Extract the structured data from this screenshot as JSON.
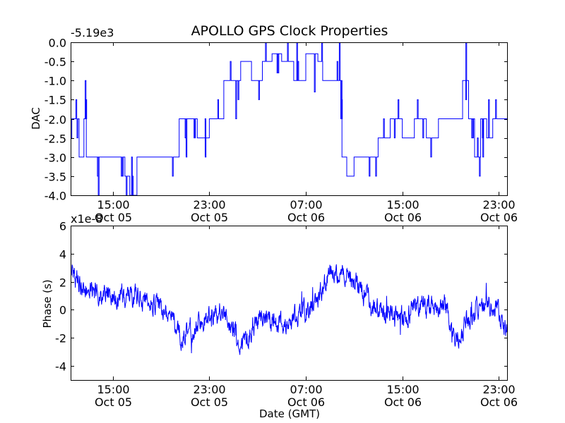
{
  "chart_data": [
    {
      "type": "line",
      "title": "APOLLO GPS Clock Properties",
      "xlabel": "",
      "ylabel": "DAC",
      "y_offset_label": "-5.19e3",
      "ylim": [
        -4.0,
        0.0
      ],
      "yticks": [
        "0.0",
        "-0.5",
        "-1.0",
        "-1.5",
        "-2.0",
        "-2.5",
        "-3.0",
        "-3.5",
        "-4.0"
      ],
      "yticks_values": [
        0,
        -0.5,
        -1.0,
        -1.5,
        -2.0,
        -2.5,
        -3.0,
        -3.5,
        -4.0
      ],
      "xlim_hours": [
        11.5,
        47.75
      ],
      "xticks": [
        {
          "hour": 15,
          "time": "15:00",
          "date": "Oct 05"
        },
        {
          "hour": 23,
          "time": "23:00",
          "date": "Oct 05"
        },
        {
          "hour": 31,
          "time": "07:00",
          "date": "Oct 06"
        },
        {
          "hour": 39,
          "time": "15:00",
          "date": "Oct 06"
        },
        {
          "hour": 47,
          "time": "23:00",
          "date": "Oct 06"
        }
      ],
      "series": [
        {
          "name": "DAC",
          "step_levels": [
            [
              11.5,
              -2.5
            ],
            [
              11.6,
              -2.0
            ],
            [
              12.2,
              -3.0
            ],
            [
              12.6,
              -2.0
            ],
            [
              12.8,
              -3.0
            ],
            [
              15.0,
              -3.0
            ],
            [
              16.0,
              -3.5
            ],
            [
              16.4,
              -4.0
            ],
            [
              17.0,
              -3.0
            ],
            [
              19.0,
              -3.0
            ],
            [
              20.5,
              -2.0
            ],
            [
              21.5,
              -2.0
            ],
            [
              22.0,
              -2.5
            ],
            [
              23.0,
              -2.0
            ],
            [
              24.2,
              -1.0
            ],
            [
              25.0,
              -1.0
            ],
            [
              25.6,
              -0.5
            ],
            [
              26.5,
              -1.0
            ],
            [
              27.4,
              -0.5
            ],
            [
              28.2,
              -0.3
            ],
            [
              29.0,
              -0.5
            ],
            [
              30.0,
              -1.0
            ],
            [
              31.0,
              -0.3
            ],
            [
              32.0,
              -0.5
            ],
            [
              32.4,
              -1.0
            ],
            [
              33.5,
              -1.0
            ],
            [
              33.9,
              -2.0
            ],
            [
              34.0,
              -3.0
            ],
            [
              34.4,
              -3.5
            ],
            [
              35.0,
              -3.0
            ],
            [
              35.5,
              -3.0
            ],
            [
              36.0,
              -3.0
            ],
            [
              37.0,
              -2.5
            ],
            [
              38.0,
              -2.0
            ],
            [
              39.0,
              -2.5
            ],
            [
              40.0,
              -2.0
            ],
            [
              41.0,
              -2.5
            ],
            [
              42.0,
              -2.0
            ],
            [
              43.0,
              -2.0
            ],
            [
              44.0,
              -1.0
            ],
            [
              44.5,
              -2.0
            ],
            [
              45.0,
              -3.0
            ],
            [
              45.5,
              -2.0
            ],
            [
              46.0,
              -2.5
            ],
            [
              46.5,
              -2.0
            ],
            [
              47.5,
              -2.0
            ],
            [
              47.75,
              -1.0
            ]
          ]
        }
      ]
    },
    {
      "type": "line",
      "title": "",
      "xlabel": "Date (GMT)",
      "ylabel": "Phase (s)",
      "y_offset_label": "x1e-8",
      "ylim": [
        -5,
        6
      ],
      "yticks": [
        "6",
        "4",
        "2",
        "0",
        "-2",
        "-4"
      ],
      "yticks_values": [
        6,
        4,
        2,
        0,
        -2,
        -4
      ],
      "xlim_hours": [
        11.5,
        47.75
      ],
      "xticks": [
        {
          "hour": 15,
          "time": "15:00",
          "date": "Oct 05"
        },
        {
          "hour": 23,
          "time": "23:00",
          "date": "Oct 05"
        },
        {
          "hour": 31,
          "time": "07:00",
          "date": "Oct 06"
        },
        {
          "hour": 39,
          "time": "15:00",
          "date": "Oct 06"
        },
        {
          "hour": 47,
          "time": "23:00",
          "date": "Oct 06"
        }
      ],
      "series": [
        {
          "name": "Phase",
          "trend": [
            [
              11.5,
              2.8
            ],
            [
              12.0,
              2.0
            ],
            [
              13.0,
              1.3
            ],
            [
              14.0,
              1.0
            ],
            [
              15.0,
              1.0
            ],
            [
              16.0,
              0.9
            ],
            [
              17.0,
              1.0
            ],
            [
              18.0,
              0.6
            ],
            [
              19.0,
              0.1
            ],
            [
              20.0,
              -0.6
            ],
            [
              20.5,
              -1.6
            ],
            [
              21.0,
              -2.0
            ],
            [
              21.5,
              -1.4
            ],
            [
              22.0,
              -1.0
            ],
            [
              23.0,
              -0.5
            ],
            [
              24.0,
              -0.3
            ],
            [
              24.5,
              -0.6
            ],
            [
              25.0,
              -1.5
            ],
            [
              25.5,
              -2.6
            ],
            [
              26.0,
              -2.4
            ],
            [
              26.5,
              -1.5
            ],
            [
              27.0,
              -0.6
            ],
            [
              27.5,
              -0.3
            ],
            [
              28.0,
              -0.7
            ],
            [
              28.5,
              -1.2
            ],
            [
              29.0,
              -1.0
            ],
            [
              30.0,
              -0.6
            ],
            [
              31.0,
              0.0
            ],
            [
              31.5,
              0.3
            ],
            [
              32.0,
              0.8
            ],
            [
              32.5,
              1.5
            ],
            [
              33.0,
              2.8
            ],
            [
              34.0,
              2.7
            ],
            [
              35.0,
              2.0
            ],
            [
              36.0,
              1.0
            ],
            [
              37.0,
              -0.2
            ],
            [
              38.0,
              -0.4
            ],
            [
              38.5,
              -0.6
            ],
            [
              39.0,
              -0.5
            ],
            [
              40.0,
              0.0
            ],
            [
              41.0,
              0.3
            ],
            [
              42.0,
              0.5
            ],
            [
              42.5,
              0.3
            ],
            [
              43.0,
              -1.0
            ],
            [
              43.5,
              -2.3
            ],
            [
              44.0,
              -1.5
            ],
            [
              45.0,
              0.0
            ],
            [
              46.0,
              0.5
            ],
            [
              46.5,
              0.2
            ],
            [
              47.0,
              -0.3
            ],
            [
              47.5,
              -1.2
            ],
            [
              47.75,
              -1.5
            ]
          ]
        }
      ]
    }
  ]
}
